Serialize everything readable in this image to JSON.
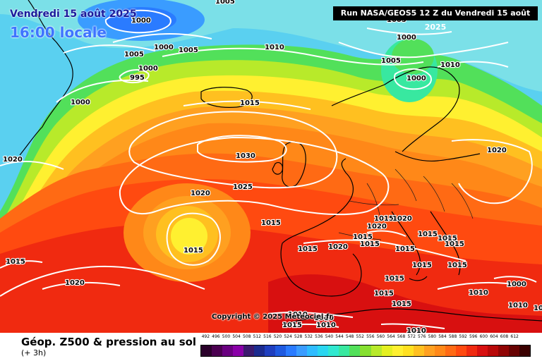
{
  "header": {
    "date_line": "Vendredi 15 août 2025",
    "time_line": "16:00 locale",
    "run_info": "Run NASA/GEOS5 12 Z du Vendredi 15 août 2025"
  },
  "copyright": "Copyright © 2025 Meteociel.fr",
  "footer": {
    "title": "Géop. Z500 & pression au sol",
    "subtitle": "(+ 3h)"
  },
  "legend": {
    "labels": [
      "492",
      "496",
      "500",
      "504",
      "508",
      "512",
      "516",
      "520",
      "524",
      "528",
      "532",
      "536",
      "540",
      "544",
      "548",
      "552",
      "556",
      "560",
      "564",
      "568",
      "572",
      "576",
      "580",
      "584",
      "588",
      "592",
      "596",
      "600",
      "604",
      "608",
      "612"
    ],
    "colors": [
      "#2a002a",
      "#4b0050",
      "#6a0080",
      "#8a00a8",
      "#3c1a6e",
      "#1c2b8f",
      "#1f3fbf",
      "#1f5ae0",
      "#2a7bff",
      "#3a9cff",
      "#2fbcff",
      "#2ad6f0",
      "#30e8d0",
      "#38e8a0",
      "#52e05a",
      "#86e030",
      "#b8ea2a",
      "#e4f020",
      "#fff030",
      "#ffe020",
      "#ffc020",
      "#ffa020",
      "#ff8818",
      "#ff6a14",
      "#ff4a10",
      "#f02a10",
      "#d81010",
      "#b80808",
      "#900404",
      "#680202",
      "#3a0000"
    ]
  },
  "isobar_labels": [
    "1005",
    "1000",
    "1005",
    "1000",
    "1005",
    "1000",
    "995",
    "1000",
    "1010",
    "1005",
    "1000",
    "1005",
    "1000",
    "1015",
    "1020",
    "1030",
    "1025",
    "1020",
    "1015",
    "1015",
    "1015",
    "1020",
    "1015",
    "1020",
    "1015",
    "1020",
    "1015",
    "1015",
    "1015",
    "1015",
    "1015",
    "1020",
    "1015",
    "1015",
    "1015",
    "1010",
    "1000",
    "1020",
    "1010",
    "1015",
    "1015",
    "1015",
    "1010",
    "1010",
    "1010",
    "1015",
    "1010",
    "1010",
    "1010"
  ]
}
